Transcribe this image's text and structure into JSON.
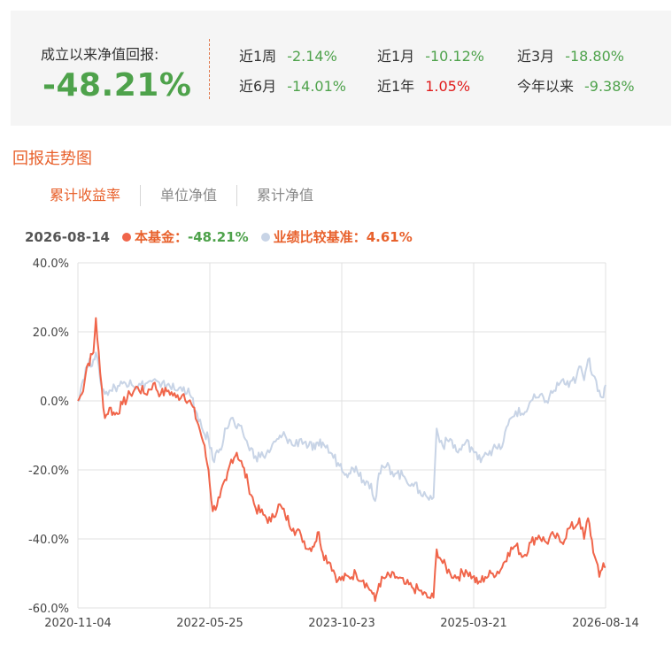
{
  "summary": {
    "since_label": "成立以来净值回报:",
    "since_value": "-48.21%",
    "periods": [
      {
        "label": "近1周",
        "value": "-2.14%",
        "sign": "neg"
      },
      {
        "label": "近1月",
        "value": "-10.12%",
        "sign": "neg"
      },
      {
        "label": "近3月",
        "value": "-18.80%",
        "sign": "neg"
      },
      {
        "label": "近6月",
        "value": "-14.01%",
        "sign": "neg"
      },
      {
        "label": "近1年",
        "value": "1.05%",
        "sign": "pos"
      },
      {
        "label": "今年以来",
        "value": "-9.38%",
        "sign": "neg"
      }
    ]
  },
  "section_title": "回报走势图",
  "tabs": [
    "累计收益率",
    "单位净值",
    "累计净值"
  ],
  "active_tab": 0,
  "legend": {
    "date": "2026-08-14",
    "fund_name": "本基金：",
    "fund_value": "-48.21%",
    "bench_name": "业绩比较基准：",
    "bench_value": "4.61%"
  },
  "colors": {
    "fund": "#f0654a",
    "benchmark": "#c8d4e6",
    "positive": "#e01b1b",
    "negative": "#4ea24b",
    "accent": "#e8612c"
  },
  "chart_data": {
    "type": "line",
    "ylim": [
      -60,
      40
    ],
    "y_ticks": [
      "40.0%",
      "20.0%",
      "0.0%",
      "-20.0%",
      "-40.0%",
      "-60.0%"
    ],
    "x_tick_labels": [
      "2020-11-04",
      "2022-05-25",
      "2023-10-23",
      "2025-03-21",
      "2026-08-14"
    ],
    "x_start": "2020-11-04",
    "x_end": "2026-08-14",
    "grid": true,
    "series": [
      {
        "name": "本基金",
        "values": [
          [
            "2020-11-04",
            0
          ],
          [
            "2020-11-20",
            2
          ],
          [
            "2020-12-10",
            10
          ],
          [
            "2021-01-05",
            14
          ],
          [
            "2021-01-15",
            24
          ],
          [
            "2021-02-01",
            8
          ],
          [
            "2021-02-20",
            -5
          ],
          [
            "2021-03-10",
            -2
          ],
          [
            "2021-04-01",
            -4
          ],
          [
            "2021-05-01",
            -1
          ],
          [
            "2021-06-01",
            2
          ],
          [
            "2021-07-01",
            4
          ],
          [
            "2021-08-01",
            2
          ],
          [
            "2021-09-01",
            5
          ],
          [
            "2021-10-01",
            2
          ],
          [
            "2021-11-01",
            3
          ],
          [
            "2021-12-01",
            1
          ],
          [
            "2022-01-01",
            2
          ],
          [
            "2022-02-01",
            -1
          ],
          [
            "2022-03-01",
            -7
          ],
          [
            "2022-03-20",
            -12
          ],
          [
            "2022-04-10",
            -20
          ],
          [
            "2022-04-27",
            -32
          ],
          [
            "2022-05-25",
            -28
          ],
          [
            "2022-06-20",
            -23
          ],
          [
            "2022-07-10",
            -17
          ],
          [
            "2022-08-01",
            -15
          ],
          [
            "2022-08-25",
            -19
          ],
          [
            "2022-09-15",
            -24
          ],
          [
            "2022-10-15",
            -31
          ],
          [
            "2022-11-15",
            -33
          ],
          [
            "2022-12-15",
            -35
          ],
          [
            "2023-01-15",
            -30
          ],
          [
            "2023-02-10",
            -33
          ],
          [
            "2023-03-15",
            -37
          ],
          [
            "2023-04-15",
            -39
          ],
          [
            "2023-05-15",
            -43
          ],
          [
            "2023-06-10",
            -41
          ],
          [
            "2023-06-25",
            -38
          ],
          [
            "2023-07-10",
            -44
          ],
          [
            "2023-08-10",
            -47
          ],
          [
            "2023-09-10",
            -52
          ],
          [
            "2023-10-23",
            -51
          ],
          [
            "2023-11-20",
            -50
          ],
          [
            "2023-12-20",
            -52
          ],
          [
            "2024-01-20",
            -55
          ],
          [
            "2024-02-05",
            -58
          ],
          [
            "2024-02-20",
            -53
          ],
          [
            "2024-03-20",
            -51
          ],
          [
            "2024-05-01",
            -51
          ],
          [
            "2024-06-01",
            -53
          ],
          [
            "2024-07-01",
            -54
          ],
          [
            "2024-08-01",
            -55
          ],
          [
            "2024-09-01",
            -57
          ],
          [
            "2024-09-25",
            -57
          ],
          [
            "2024-10-08",
            -43
          ],
          [
            "2024-11-01",
            -47
          ],
          [
            "2024-12-01",
            -50
          ],
          [
            "2025-01-01",
            -51
          ],
          [
            "2025-02-01",
            -49
          ],
          [
            "2025-03-01",
            -51
          ],
          [
            "2025-03-21",
            -53
          ],
          [
            "2025-04-20",
            -51
          ],
          [
            "2025-05-20",
            -50
          ],
          [
            "2025-06-20",
            -49
          ],
          [
            "2025-07-20",
            -44
          ],
          [
            "2025-08-20",
            -42
          ],
          [
            "2025-09-20",
            -45
          ],
          [
            "2025-10-20",
            -41
          ],
          [
            "2025-11-20",
            -39
          ],
          [
            "2025-12-20",
            -41
          ],
          [
            "2026-01-20",
            -39
          ],
          [
            "2026-02-20",
            -41
          ],
          [
            "2026-03-20",
            -37
          ],
          [
            "2026-04-20",
            -36
          ],
          [
            "2026-05-01",
            -34
          ],
          [
            "2026-05-20",
            -40
          ],
          [
            "2026-06-05",
            -34
          ],
          [
            "2026-07-01",
            -45
          ],
          [
            "2026-07-20",
            -51
          ],
          [
            "2026-08-05",
            -47
          ],
          [
            "2026-08-14",
            -48.21
          ]
        ]
      },
      {
        "name": "业绩比较基准",
        "values": [
          [
            "2020-11-04",
            0
          ],
          [
            "2020-11-20",
            5
          ],
          [
            "2020-12-10",
            10
          ],
          [
            "2021-01-05",
            12
          ],
          [
            "2021-01-15",
            14
          ],
          [
            "2021-02-01",
            6
          ],
          [
            "2021-02-20",
            2
          ],
          [
            "2021-03-10",
            3
          ],
          [
            "2021-04-01",
            4
          ],
          [
            "2021-05-01",
            5
          ],
          [
            "2021-06-01",
            6
          ],
          [
            "2021-07-01",
            4
          ],
          [
            "2021-08-01",
            5
          ],
          [
            "2021-09-01",
            6
          ],
          [
            "2021-10-01",
            4
          ],
          [
            "2021-11-01",
            5
          ],
          [
            "2021-12-01",
            3
          ],
          [
            "2022-01-01",
            4
          ],
          [
            "2022-02-01",
            1
          ],
          [
            "2022-03-01",
            -6
          ],
          [
            "2022-03-20",
            -9
          ],
          [
            "2022-04-10",
            -11
          ],
          [
            "2022-04-27",
            -17
          ],
          [
            "2022-05-25",
            -14
          ],
          [
            "2022-06-20",
            -8
          ],
          [
            "2022-07-10",
            -5
          ],
          [
            "2022-08-01",
            -8
          ],
          [
            "2022-08-25",
            -9
          ],
          [
            "2022-09-15",
            -13
          ],
          [
            "2022-10-15",
            -16
          ],
          [
            "2022-11-15",
            -16
          ],
          [
            "2022-12-15",
            -14
          ],
          [
            "2023-01-15",
            -11
          ],
          [
            "2023-02-10",
            -10
          ],
          [
            "2023-03-15",
            -13
          ],
          [
            "2023-04-15",
            -11
          ],
          [
            "2023-05-15",
            -13
          ],
          [
            "2023-06-10",
            -14
          ],
          [
            "2023-06-25",
            -13
          ],
          [
            "2023-07-10",
            -12
          ],
          [
            "2023-08-10",
            -15
          ],
          [
            "2023-09-10",
            -18
          ],
          [
            "2023-10-23",
            -21
          ],
          [
            "2023-11-20",
            -19
          ],
          [
            "2023-12-20",
            -23
          ],
          [
            "2024-01-20",
            -24
          ],
          [
            "2024-02-05",
            -29
          ],
          [
            "2024-02-20",
            -21
          ],
          [
            "2024-03-20",
            -19
          ],
          [
            "2024-05-01",
            -21
          ],
          [
            "2024-06-01",
            -22
          ],
          [
            "2024-07-01",
            -24
          ],
          [
            "2024-08-01",
            -26
          ],
          [
            "2024-09-01",
            -28
          ],
          [
            "2024-09-25",
            -28
          ],
          [
            "2024-10-08",
            -8
          ],
          [
            "2024-11-01",
            -13
          ],
          [
            "2024-12-01",
            -11
          ],
          [
            "2025-01-01",
            -15
          ],
          [
            "2025-02-01",
            -12
          ],
          [
            "2025-03-01",
            -14
          ],
          [
            "2025-03-21",
            -17
          ],
          [
            "2025-04-20",
            -15
          ],
          [
            "2025-05-20",
            -14
          ],
          [
            "2025-06-20",
            -14
          ],
          [
            "2025-07-20",
            -7
          ],
          [
            "2025-08-20",
            -3
          ],
          [
            "2025-09-20",
            -4
          ],
          [
            "2025-10-20",
            0
          ],
          [
            "2025-11-20",
            1
          ],
          [
            "2025-12-20",
            0
          ],
          [
            "2026-01-20",
            3
          ],
          [
            "2026-02-20",
            6
          ],
          [
            "2026-03-20",
            4
          ],
          [
            "2026-04-20",
            7
          ],
          [
            "2026-05-01",
            10
          ],
          [
            "2026-05-20",
            6
          ],
          [
            "2026-06-05",
            12
          ],
          [
            "2026-07-01",
            7
          ],
          [
            "2026-07-20",
            3
          ],
          [
            "2026-08-05",
            1
          ],
          [
            "2026-08-14",
            4.61
          ]
        ]
      }
    ]
  }
}
